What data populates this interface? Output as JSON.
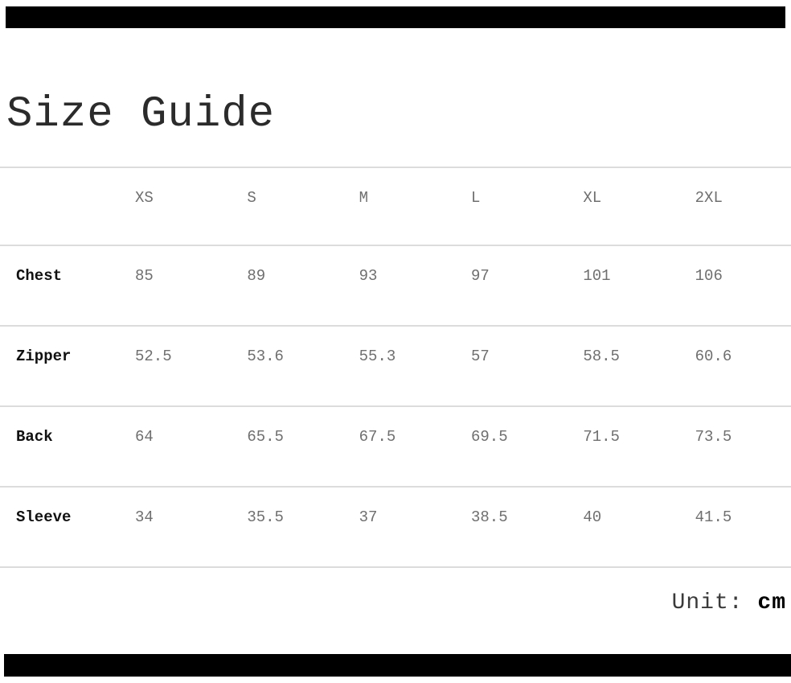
{
  "page": {
    "title": "Size Guide"
  },
  "table": {
    "columns": [
      "XS",
      "S",
      "M",
      "L",
      "XL",
      "2XL"
    ],
    "rows": [
      {
        "label": "Chest",
        "values": [
          "85",
          "89",
          "93",
          "97",
          "101",
          "106"
        ]
      },
      {
        "label": "Zipper",
        "values": [
          "52.5",
          "53.6",
          "55.3",
          "57",
          "58.5",
          "60.6"
        ]
      },
      {
        "label": "Back",
        "values": [
          "64",
          "65.5",
          "67.5",
          "69.5",
          "71.5",
          "73.5"
        ]
      },
      {
        "label": "Sleeve",
        "values": [
          "34",
          "35.5",
          "37",
          "38.5",
          "40",
          "41.5"
        ]
      }
    ]
  },
  "footer": {
    "unit_label": "Unit:",
    "unit_value": "cm"
  },
  "colors": {
    "banner": "#000000",
    "title_text": "#2b2b2b",
    "row_label_text": "#111111",
    "cell_text": "#6f6f6f",
    "divider": "#dcdcdc"
  }
}
